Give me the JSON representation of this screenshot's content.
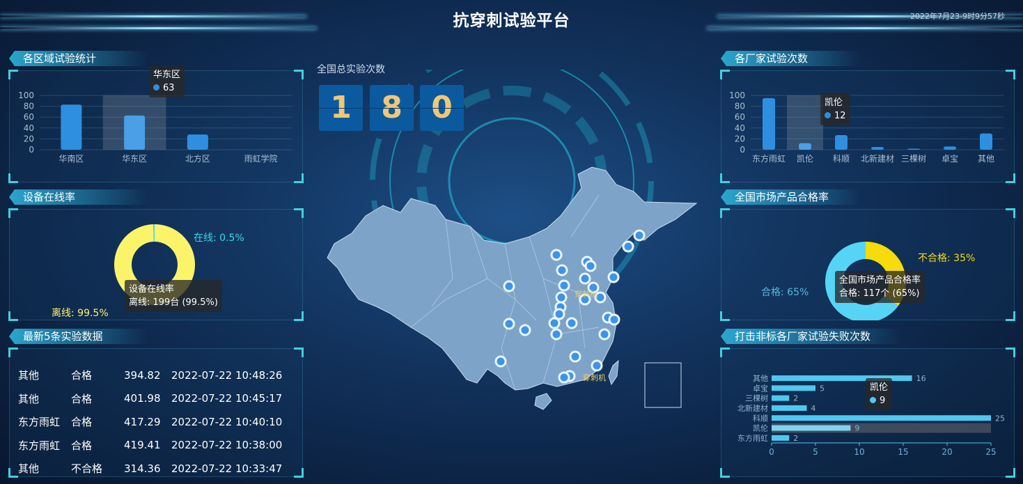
{
  "header": {
    "title": "抗穿刺试验平台",
    "datetime": "2022年7月23-9时9分57秒"
  },
  "colors": {
    "bar": "#2e8fe0",
    "bar_highlight": "#4a9fe6",
    "hbar": "#4fc8f0",
    "online": "#3fd6e8",
    "offline": "#fbf46b",
    "qualified": "#56d4f5",
    "unqualified": "#f5dc0a",
    "corner": "#3fd1dc",
    "digit_bg": "#0b5aa0",
    "digit_fg": "#f0c777"
  },
  "counter": {
    "label": "全国总实验次数",
    "digits": [
      "1",
      "8",
      "0"
    ]
  },
  "map": {
    "labels": [
      "穿刺机",
      "穿刺机"
    ],
    "marker_icon": "circle-marker-icon"
  },
  "panels": {
    "region": {
      "title": "各区域试验统计",
      "tooltip": {
        "name": "华东区",
        "value": "63"
      }
    },
    "online": {
      "title": "设备在线率",
      "label_online": "在线: 0.5%",
      "label_offline": "离线: 99.5%",
      "tooltip": {
        "title": "设备在线率",
        "line": "离线: 199台 (99.5%)"
      }
    },
    "latest": {
      "title": "最新5条实验数据",
      "rows": [
        [
          "其他",
          "合格",
          "394.82",
          "2022-07-22 10:48:26"
        ],
        [
          "其他",
          "合格",
          "401.98",
          "2022-07-22 10:45:17"
        ],
        [
          "东方雨虹",
          "合格",
          "417.29",
          "2022-07-22 10:40:10"
        ],
        [
          "东方雨虹",
          "合格",
          "419.41",
          "2022-07-22 10:38:00"
        ],
        [
          "其他",
          "不合格",
          "314.36",
          "2022-07-22 10:33:47"
        ]
      ]
    },
    "maker": {
      "title": "各厂家试验次数",
      "tooltip": {
        "name": "凯伦",
        "value": "12"
      }
    },
    "quality": {
      "title": "全国市场产品合格率",
      "label_ok": "合格: 65%",
      "label_bad": "不合格: 35%",
      "tooltip": {
        "title": "全国市场产品合格率",
        "line": "合格: 117个 (65%)"
      }
    },
    "fail": {
      "title": "打击非标各厂家试验失败次数",
      "tooltip": {
        "name": "凯伦",
        "value": "9"
      }
    }
  },
  "chart_data": [
    {
      "type": "bar",
      "categories": [
        "华南区",
        "华东区",
        "北方区",
        "雨虹学院"
      ],
      "values": [
        83,
        63,
        28,
        0
      ],
      "ylim": [
        0,
        100
      ],
      "yticks": [
        "0",
        "20",
        "40",
        "60",
        "80",
        "100"
      ],
      "grid": true,
      "highlight": "华东区"
    },
    {
      "type": "pie",
      "donut": true,
      "categories": [
        "在线",
        "离线"
      ],
      "values": [
        0.5,
        99.5
      ]
    },
    {
      "type": "bar",
      "categories": [
        "东方雨虹",
        "凯伦",
        "科顺",
        "北新建材",
        "三棵树",
        "卓宝",
        "其他"
      ],
      "values": [
        95,
        12,
        27,
        5,
        2,
        6,
        30
      ],
      "ylim": [
        0,
        100
      ],
      "yticks": [
        "0",
        "20",
        "40",
        "60",
        "80",
        "100"
      ],
      "grid": true,
      "highlight": "凯伦"
    },
    {
      "type": "pie",
      "donut": true,
      "categories": [
        "合格",
        "不合格"
      ],
      "values": [
        65,
        35
      ]
    },
    {
      "type": "bar",
      "orientation": "horizontal",
      "categories": [
        "东方雨虹",
        "凯伦",
        "科顺",
        "北新建材",
        "三棵树",
        "卓宝",
        "其他"
      ],
      "values": [
        2,
        9,
        25,
        4,
        2,
        5,
        16
      ],
      "xlim": [
        0,
        25
      ],
      "xticks": [
        "0",
        "5",
        "10",
        "15",
        "20",
        "25"
      ],
      "highlight": "凯伦"
    }
  ]
}
